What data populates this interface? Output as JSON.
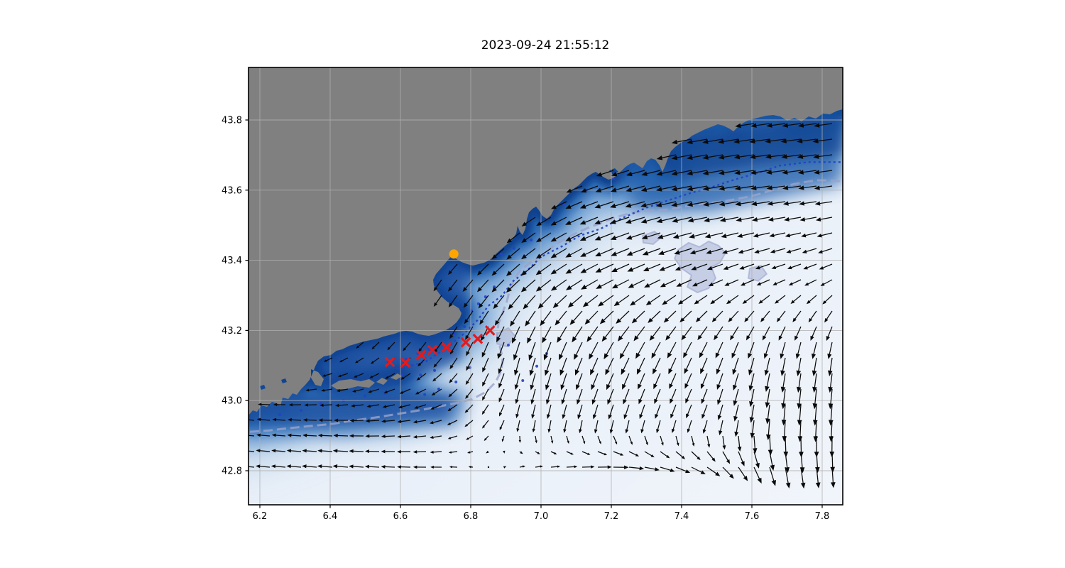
{
  "title": "2023-09-24 21:55:12",
  "axes": {
    "x_tick_labels": [
      "6.2",
      "6.4",
      "6.6",
      "6.8",
      "7.0",
      "7.2",
      "7.4",
      "7.6",
      "7.8"
    ],
    "x_tick_values": [
      6.2,
      6.4,
      6.6,
      6.8,
      7.0,
      7.2,
      7.4,
      7.6,
      7.8
    ],
    "y_tick_labels": [
      "42.8",
      "43.0",
      "43.2",
      "43.4",
      "43.6",
      "43.8"
    ],
    "y_tick_values": [
      42.8,
      43.0,
      43.2,
      43.4,
      43.6,
      43.8
    ]
  },
  "colors": {
    "land": "#808080",
    "ocean_pale": "#e9f0f8",
    "ocean_light": "#5d93cd",
    "ocean_mid": "#2261ad",
    "ocean_deep": "#0e3f8d",
    "contour_inner": "#2342c6",
    "contour_shelf": "#9aa3cc",
    "arrow": "#0a0a0a",
    "track_marker": "#e41a1c",
    "station_marker": "#ffa500",
    "grid": "#b0b0b0",
    "spine": "#000000"
  },
  "chart_data": {
    "type": "map_quiver",
    "title": "2023-09-24 21:55:12",
    "x_axis": {
      "label": "",
      "ticks": [
        6.2,
        6.4,
        6.6,
        6.8,
        7.0,
        7.2,
        7.4,
        7.6,
        7.8
      ],
      "range": [
        6.168,
        7.858
      ]
    },
    "y_axis": {
      "label": "",
      "ticks": [
        42.8,
        43.0,
        43.2,
        43.4,
        43.6,
        43.8
      ],
      "range": [
        42.703,
        43.95
      ]
    },
    "grid": true,
    "legend": null,
    "land": "gray coastal landmass upper-left (French Riviera), islands near 6.4-6.6E 43.0N",
    "ocean_shading": "dark blue nearshore bathymetry fading to very pale blue offshore",
    "track_markers": {
      "symbol": "x",
      "color": "#e41a1c",
      "points": [
        [
          6.57,
          43.11
        ],
        [
          6.614,
          43.108
        ],
        [
          6.659,
          43.13
        ],
        [
          6.691,
          43.144
        ],
        [
          6.731,
          43.152
        ],
        [
          6.786,
          43.166
        ],
        [
          6.82,
          43.176
        ],
        [
          6.855,
          43.2
        ]
      ]
    },
    "station_marker": {
      "symbol": "circle",
      "color": "#ffa500",
      "lon": 6.752,
      "lat": 43.418
    },
    "quiver": {
      "color": "#0a0a0a",
      "spacing_px": 22,
      "grid_lons": [
        6.2,
        6.45,
        6.7,
        6.95,
        7.2,
        7.45,
        7.7,
        7.9
      ],
      "grid_lats": [
        43.95,
        43.75,
        43.55,
        43.35,
        43.15,
        42.95,
        42.82,
        42.7
      ],
      "u": [
        [
          -0.3,
          -0.3,
          -0.3,
          -0.3,
          -0.4,
          -0.5,
          -0.5,
          -0.5
        ],
        [
          -0.3,
          -0.3,
          -0.3,
          -0.4,
          -0.6,
          -0.8,
          -0.8,
          -0.75
        ],
        [
          -0.3,
          -0.3,
          -0.3,
          -0.5,
          -0.75,
          -0.8,
          -0.7,
          -0.65
        ],
        [
          -0.2,
          -0.2,
          -0.3,
          -0.55,
          -0.7,
          -0.6,
          -0.5,
          -0.45
        ],
        [
          -0.3,
          -0.3,
          -0.3,
          -0.2,
          -0.35,
          -0.3,
          -0.15,
          -0.1
        ],
        [
          -0.5,
          -0.55,
          -0.5,
          -0.1,
          -0.15,
          -0.2,
          -0.05,
          -0.05
        ],
        [
          -0.55,
          -0.6,
          -0.5,
          0.25,
          0.6,
          0.55,
          0.15,
          0.0
        ],
        [
          -0.5,
          -0.55,
          -0.4,
          0.3,
          0.6,
          0.5,
          0.1,
          0.0
        ]
      ],
      "v": [
        [
          0.0,
          0.0,
          0.0,
          -0.1,
          -0.1,
          -0.1,
          -0.1,
          -0.1
        ],
        [
          0.0,
          0.0,
          -0.1,
          -0.2,
          -0.2,
          -0.15,
          -0.1,
          -0.1
        ],
        [
          -0.1,
          -0.1,
          -0.2,
          -0.35,
          -0.25,
          -0.15,
          -0.1,
          -0.1
        ],
        [
          -0.2,
          -0.3,
          -0.45,
          -0.5,
          -0.35,
          -0.25,
          -0.2,
          -0.25
        ],
        [
          -0.1,
          -0.2,
          -0.4,
          -0.75,
          -0.7,
          -0.65,
          -0.7,
          -0.7
        ],
        [
          0.05,
          0.0,
          -0.1,
          -0.5,
          -0.55,
          -0.5,
          -0.85,
          -0.85
        ],
        [
          0.05,
          0.05,
          0.0,
          0.05,
          0.0,
          -0.3,
          -0.85,
          -0.8
        ],
        [
          0.05,
          0.05,
          0.0,
          0.05,
          0.0,
          -0.35,
          -0.8,
          -0.75
        ]
      ]
    },
    "contours": {
      "inner": {
        "color": "#2342c6",
        "style": "dashed",
        "points": [
          [
            6.59,
            43.09
          ],
          [
            6.67,
            43.11
          ],
          [
            6.73,
            43.15
          ],
          [
            6.78,
            43.19
          ],
          [
            6.82,
            43.23
          ],
          [
            6.85,
            43.27
          ],
          [
            6.89,
            43.3
          ],
          [
            6.92,
            43.34
          ],
          [
            6.96,
            43.37
          ],
          [
            7.0,
            43.41
          ],
          [
            7.06,
            43.44
          ],
          [
            7.11,
            43.47
          ],
          [
            7.17,
            43.49
          ],
          [
            7.23,
            43.52
          ],
          [
            7.3,
            43.55
          ],
          [
            7.36,
            43.57
          ],
          [
            7.42,
            43.59
          ],
          [
            7.49,
            43.61
          ],
          [
            7.55,
            43.63
          ],
          [
            7.62,
            43.65
          ],
          [
            7.68,
            43.67
          ],
          [
            7.76,
            43.68
          ],
          [
            7.86,
            43.68
          ]
        ]
      },
      "shelf": {
        "color": "#9aa3cc",
        "style": "solid-broken",
        "points": [
          [
            6.172,
            42.911
          ],
          [
            6.228,
            42.915
          ],
          [
            6.289,
            42.922
          ],
          [
            6.35,
            42.928
          ],
          [
            6.41,
            42.934
          ],
          [
            6.471,
            42.944
          ],
          [
            6.531,
            42.952
          ],
          [
            6.592,
            42.962
          ],
          [
            6.653,
            42.972
          ],
          [
            6.703,
            42.982
          ],
          [
            6.754,
            42.992
          ],
          [
            6.804,
            43.004
          ],
          [
            6.844,
            43.025
          ],
          [
            6.871,
            43.053
          ],
          [
            6.887,
            43.085
          ],
          [
            6.891,
            43.12
          ],
          [
            6.883,
            43.154
          ],
          [
            6.875,
            43.187
          ],
          [
            6.879,
            43.219
          ],
          [
            6.891,
            43.251
          ],
          [
            6.903,
            43.284
          ],
          [
            6.911,
            43.316
          ],
          [
            6.923,
            43.344
          ],
          [
            6.939,
            43.369
          ],
          [
            6.964,
            43.389
          ],
          [
            6.992,
            43.409
          ],
          [
            7.02,
            43.429
          ],
          [
            7.048,
            43.45
          ],
          [
            7.077,
            43.466
          ],
          [
            7.105,
            43.48
          ],
          [
            7.137,
            43.494
          ],
          [
            7.17,
            43.506
          ],
          [
            7.202,
            43.519
          ],
          [
            7.234,
            43.529
          ],
          [
            7.267,
            43.537
          ],
          [
            7.299,
            43.541
          ],
          [
            7.331,
            43.543
          ],
          [
            7.364,
            43.545
          ],
          [
            7.396,
            43.551
          ],
          [
            7.428,
            43.557
          ],
          [
            7.461,
            43.561
          ],
          [
            7.493,
            43.565
          ],
          [
            7.525,
            43.569
          ],
          [
            7.558,
            43.575
          ],
          [
            7.59,
            43.581
          ],
          [
            7.622,
            43.589
          ],
          [
            7.655,
            43.599
          ],
          [
            7.687,
            43.609
          ],
          [
            7.719,
            43.617
          ],
          [
            7.752,
            43.623
          ],
          [
            7.784,
            43.628
          ],
          [
            7.816,
            43.628
          ],
          [
            7.844,
            43.626
          ],
          [
            7.859,
            43.624
          ]
        ]
      }
    },
    "depth_spots": [
      [
        6.616,
        43.118
      ],
      [
        6.649,
        43.134
      ],
      [
        6.681,
        43.146
      ],
      [
        6.604,
        43.073
      ],
      [
        6.657,
        43.073
      ],
      [
        6.697,
        43.086
      ],
      [
        6.754,
        43.191
      ],
      [
        6.782,
        43.211
      ],
      [
        6.802,
        43.256
      ],
      [
        6.822,
        43.276
      ],
      [
        6.842,
        43.296
      ],
      [
        6.867,
        43.324
      ],
      [
        6.758,
        43.053
      ],
      [
        6.709,
        43.033
      ],
      [
        6.669,
        43.017
      ],
      [
        6.798,
        43.094
      ],
      [
        6.879,
        43.13
      ],
      [
        6.907,
        43.158
      ],
      [
        6.948,
        43.057
      ],
      [
        6.988,
        43.098
      ],
      [
        7.016,
        43.134
      ],
      [
        7.206,
        43.632
      ],
      [
        7.247,
        43.644
      ],
      [
        7.129,
        43.6
      ],
      [
        7.065,
        43.559
      ],
      [
        7.02,
        43.519
      ],
      [
        6.374,
        42.992
      ],
      [
        6.438,
        43.0
      ],
      [
        6.499,
        43.013
      ],
      [
        6.556,
        43.021
      ],
      [
        6.317,
        42.972
      ],
      [
        6.257,
        42.96
      ],
      [
        6.887,
        43.418
      ],
      [
        6.923,
        43.434
      ],
      [
        6.972,
        43.458
      ]
    ],
    "shelf_patches": [
      [
        [
          7.39,
          43.43
        ],
        [
          7.42,
          43.45
        ],
        [
          7.451,
          43.438
        ],
        [
          7.477,
          43.454
        ],
        [
          7.505,
          43.442
        ],
        [
          7.525,
          43.421
        ],
        [
          7.509,
          43.393
        ],
        [
          7.485,
          43.381
        ],
        [
          7.497,
          43.349
        ],
        [
          7.477,
          43.32
        ],
        [
          7.445,
          43.308
        ],
        [
          7.416,
          43.324
        ],
        [
          7.428,
          43.357
        ],
        [
          7.4,
          43.377
        ],
        [
          7.38,
          43.405
        ]
      ],
      [
        [
          7.289,
          43.47
        ],
        [
          7.323,
          43.482
        ],
        [
          7.343,
          43.466
        ],
        [
          7.319,
          43.446
        ],
        [
          7.291,
          43.45
        ]
      ],
      [
        [
          7.594,
          43.377
        ],
        [
          7.626,
          43.385
        ],
        [
          7.642,
          43.361
        ],
        [
          7.618,
          43.341
        ],
        [
          7.59,
          43.349
        ]
      ],
      [
        [
          6.875,
          43.191
        ],
        [
          6.907,
          43.207
        ],
        [
          6.927,
          43.183
        ],
        [
          6.903,
          43.154
        ],
        [
          6.875,
          43.162
        ]
      ]
    ]
  }
}
